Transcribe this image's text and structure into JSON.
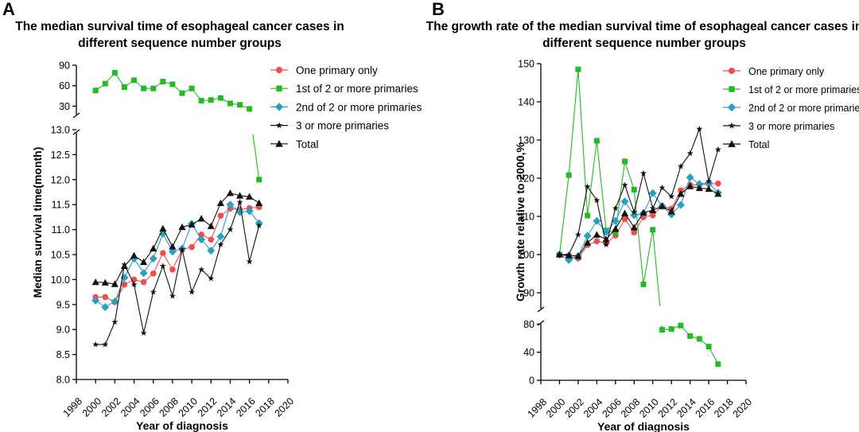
{
  "chart_data": [
    {
      "panel": "A",
      "type": "line",
      "title": "The median survival time of esophageal cancer cases in different sequence number groups",
      "title_lines": [
        "The median survival time of esophageal cancer cases in",
        "different sequence number groups"
      ],
      "xlabel": "Year of diagnosis",
      "ylabel": "Median survival time(month)",
      "xlim": [
        1998,
        2020
      ],
      "x_ticks": [
        1998,
        2000,
        2002,
        2004,
        2006,
        2008,
        2010,
        2012,
        2014,
        2016,
        2018,
        2020
      ],
      "y_lower_range": [
        8.0,
        13.0
      ],
      "y_lower_ticks": [
        "8.0",
        "8.5",
        "9.0",
        "9.5",
        "10.0",
        "10.5",
        "11.0",
        "11.5",
        "12.0",
        "12.5",
        "13.0"
      ],
      "y_upper_range": [
        13,
        90
      ],
      "y_upper_ticks": [
        "30",
        "60",
        "90"
      ],
      "axis_break": true,
      "legend": [
        "One primary only",
        "1st of 2 or more primaries",
        "2nd of 2 or more primaries",
        "3 or more primaries",
        "Total"
      ],
      "series": [
        {
          "name": "One primary only",
          "color": "#f04e4e",
          "marker": "circle",
          "x": [
            2000,
            2001,
            2002,
            2003,
            2004,
            2005,
            2006,
            2007,
            2008,
            2009,
            2010,
            2011,
            2012,
            2013,
            2014,
            2015,
            2016,
            2017
          ],
          "values": [
            9.65,
            9.65,
            9.55,
            9.9,
            10.0,
            9.95,
            10.12,
            10.53,
            10.2,
            10.6,
            10.65,
            10.9,
            10.8,
            11.28,
            11.42,
            11.4,
            11.43,
            11.45
          ]
        },
        {
          "name": "1st of 2 or more primaries",
          "color": "#22bb22",
          "marker": "square",
          "x": [
            2000,
            2001,
            2002,
            2003,
            2004,
            2005,
            2006,
            2007,
            2008,
            2009,
            2010,
            2011,
            2012,
            2013,
            2014,
            2015,
            2016,
            2017
          ],
          "values": [
            53,
            63,
            79,
            58,
            68,
            56,
            56,
            66,
            62,
            49,
            56,
            38,
            39,
            42,
            34,
            32,
            26,
            12
          ]
        },
        {
          "name": "2nd of 2 or more primaries",
          "color": "#2a9fc0",
          "marker": "diamond",
          "x": [
            2000,
            2001,
            2002,
            2003,
            2004,
            2005,
            2006,
            2007,
            2008,
            2009,
            2010,
            2011,
            2012,
            2013,
            2014,
            2015,
            2016,
            2017
          ],
          "values": [
            9.58,
            9.45,
            9.56,
            10.04,
            10.42,
            10.13,
            10.42,
            10.92,
            10.56,
            10.62,
            11.12,
            10.8,
            10.58,
            10.86,
            11.5,
            11.35,
            11.37,
            11.13
          ]
        },
        {
          "name": "3 or more primaries",
          "color": "#111111",
          "marker": "star",
          "x": [
            2000,
            2001,
            2002,
            2003,
            2004,
            2005,
            2006,
            2007,
            2008,
            2009,
            2010,
            2011,
            2012,
            2013,
            2014,
            2015,
            2016,
            2017
          ],
          "values": [
            8.7,
            8.7,
            9.15,
            10.3,
            9.9,
            8.93,
            9.75,
            10.27,
            9.67,
            10.6,
            9.75,
            10.2,
            10.02,
            10.7,
            11.0,
            11.55,
            10.36,
            11.08
          ]
        },
        {
          "name": "Total",
          "color": "#111111",
          "marker": "triangle",
          "x": [
            2000,
            2001,
            2002,
            2003,
            2004,
            2005,
            2006,
            2007,
            2008,
            2009,
            2010,
            2011,
            2012,
            2013,
            2014,
            2015,
            2016,
            2017
          ],
          "values": [
            9.95,
            9.94,
            9.91,
            10.27,
            10.48,
            10.35,
            10.62,
            11.02,
            10.66,
            11.05,
            11.1,
            11.22,
            11.07,
            11.53,
            11.73,
            11.68,
            11.66,
            11.53
          ]
        }
      ]
    },
    {
      "panel": "B",
      "type": "line",
      "title": "The growth rate of the median survival time of esophageal cancer cases in different sequence number groups",
      "title_lines": [
        "The growth rate of the median survival time of esophageal cancer cases in",
        "different sequence number groups"
      ],
      "xlabel": "Year of diagnosis",
      "ylabel": "Growth rate relative to 2000,%",
      "xlim": [
        1998,
        2020
      ],
      "x_ticks": [
        1998,
        2000,
        2002,
        2004,
        2006,
        2008,
        2010,
        2012,
        2014,
        2016,
        2018,
        2020
      ],
      "y_lower_range": [
        0,
        85
      ],
      "y_lower_ticks": [
        "0",
        "40",
        "80"
      ],
      "y_upper_range": [
        85,
        150
      ],
      "y_upper_ticks": [
        "90",
        "100",
        "110",
        "120",
        "130",
        "140",
        "150"
      ],
      "axis_break": true,
      "legend": [
        "One primary only",
        "1st of 2 or more primaries",
        "2nd of 2 or more primaries",
        "3 or more primaries",
        "Total"
      ],
      "series": [
        {
          "name": "One primary only",
          "color": "#f04e4e",
          "marker": "circle",
          "x": [
            2000,
            2001,
            2002,
            2003,
            2004,
            2005,
            2006,
            2007,
            2008,
            2009,
            2010,
            2011,
            2012,
            2013,
            2014,
            2015,
            2016,
            2017
          ],
          "values": [
            100,
            99.5,
            99,
            102.5,
            103.5,
            103,
            105,
            109.3,
            105.8,
            109.8,
            110.3,
            112.8,
            112,
            116.8,
            118.3,
            118.2,
            118.5,
            118.6
          ]
        },
        {
          "name": "1st of 2 or more primaries",
          "color": "#22bb22",
          "marker": "square",
          "x": [
            2000,
            2001,
            2002,
            2003,
            2004,
            2005,
            2006,
            2007,
            2008,
            2009,
            2010,
            2011,
            2012,
            2013,
            2014,
            2015,
            2016,
            2017
          ],
          "values": [
            100,
            120.8,
            148.5,
            110.2,
            129.8,
            106.3,
            105.8,
            124.4,
            117,
            92.2,
            106.5,
            72,
            73,
            78,
            63,
            59,
            48,
            23
          ]
        },
        {
          "name": "2nd of 2 or more primaries",
          "color": "#2a9fc0",
          "marker": "diamond",
          "x": [
            2000,
            2001,
            2002,
            2003,
            2004,
            2005,
            2006,
            2007,
            2008,
            2009,
            2010,
            2011,
            2012,
            2013,
            2014,
            2015,
            2016,
            2017
          ],
          "values": [
            100,
            98.6,
            99.6,
            104.9,
            108.8,
            105.9,
            108.8,
            113.9,
            110.3,
            110.8,
            116.1,
            112.7,
            110.5,
            113,
            120.2,
            118.5,
            118.8,
            116.2
          ]
        },
        {
          "name": "3 or more primaries",
          "color": "#111111",
          "marker": "star",
          "x": [
            2000,
            2001,
            2002,
            2003,
            2004,
            2005,
            2006,
            2007,
            2008,
            2009,
            2010,
            2011,
            2012,
            2013,
            2014,
            2015,
            2016,
            2017
          ],
          "values": [
            100,
            100,
            105.2,
            117.8,
            114.2,
            102.6,
            112.1,
            118.2,
            111.1,
            121.3,
            112.1,
            117.5,
            115.2,
            123.1,
            126.5,
            132.9,
            119.2,
            127.5
          ]
        },
        {
          "name": "Total",
          "color": "#111111",
          "marker": "triangle",
          "x": [
            2000,
            2001,
            2002,
            2003,
            2004,
            2005,
            2006,
            2007,
            2008,
            2009,
            2010,
            2011,
            2012,
            2013,
            2014,
            2015,
            2016,
            2017
          ],
          "values": [
            100,
            99.8,
            99.6,
            103.1,
            105.2,
            104,
            106.7,
            110.8,
            107.1,
            111,
            111.6,
            112.7,
            111.3,
            115.9,
            117.9,
            117.4,
            117.2,
            115.9
          ]
        }
      ]
    }
  ]
}
